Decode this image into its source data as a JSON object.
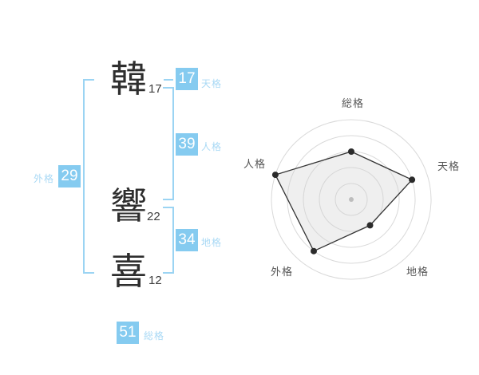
{
  "colors": {
    "box_blue": "#85CBF0",
    "label_blue": "#A9D9F5",
    "bracket_blue": "#9BD4F3",
    "kanji_dark": "#2e2e2e",
    "chart_label_gray": "#555555"
  },
  "name_panel": {
    "characters": [
      {
        "char": "韓",
        "strokes": "17"
      },
      {
        "char": "響",
        "strokes": "22"
      },
      {
        "char": "喜",
        "strokes": "12"
      }
    ],
    "kaku": {
      "tenkaku": {
        "value": "17",
        "label": "天格"
      },
      "jinkaku": {
        "value": "39",
        "label": "人格"
      },
      "chikaku": {
        "value": "34",
        "label": "地格"
      },
      "gaikaku": {
        "value": "29",
        "label": "外格"
      },
      "soukaku": {
        "value": "51",
        "label": "総格"
      }
    }
  },
  "chart_data": {
    "type": "radar",
    "title": "",
    "categories": [
      "総格",
      "天格",
      "地格",
      "外格",
      "人格"
    ],
    "values": [
      60,
      80,
      40,
      80,
      100
    ],
    "rmax": 100,
    "ring_values": [
      20,
      40,
      60,
      80,
      100
    ],
    "start_angle_deg": -90,
    "direction": "clockwise",
    "grid": "circular-rings-only",
    "legend": "none",
    "fill": "rgba(210,210,210,0.35)",
    "stroke": "#333333",
    "point_color": "#2b2b2b",
    "ring_color": "#d9d9d9",
    "center_dot_color": "#bdbdbd"
  }
}
